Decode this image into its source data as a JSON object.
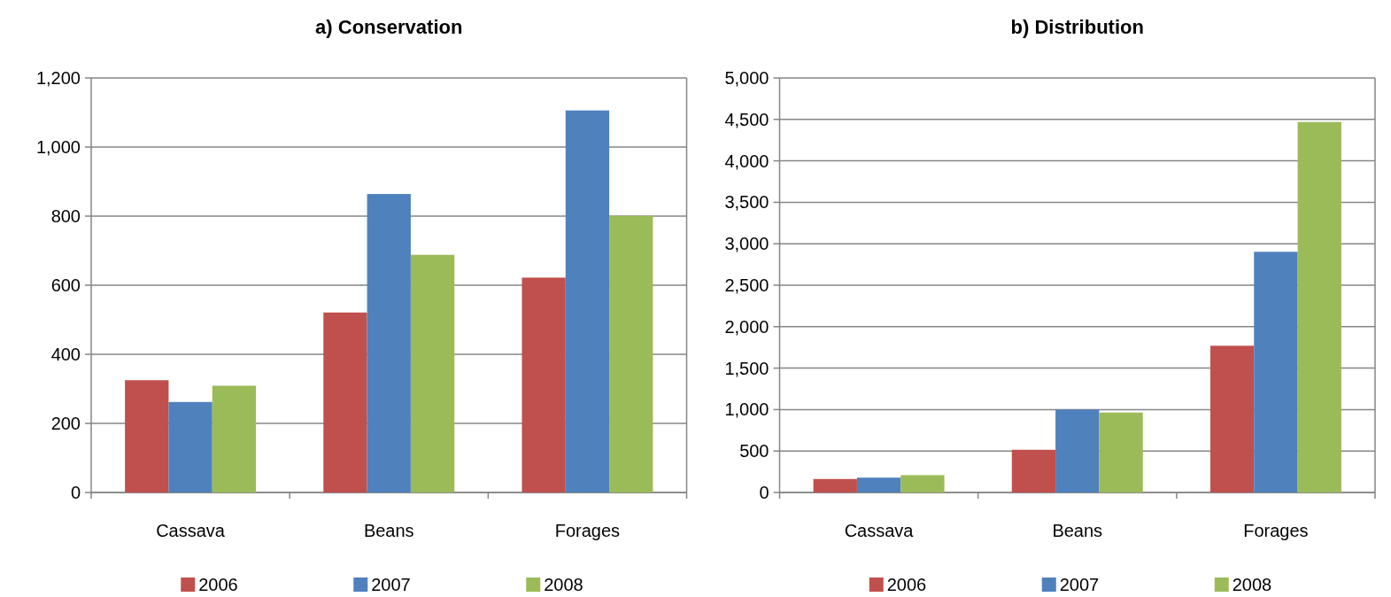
{
  "chart_data": [
    {
      "type": "bar",
      "title": "a) Conservation",
      "categories": [
        "Cassava",
        "Beans",
        "Forages"
      ],
      "series": [
        {
          "name": "2006",
          "color": "#c0504d",
          "values": [
            325,
            521,
            622
          ]
        },
        {
          "name": "2007",
          "color": "#4f81bd",
          "values": [
            262,
            864,
            1106
          ]
        },
        {
          "name": "2008",
          "color": "#9bbb59",
          "values": [
            309,
            688,
            801
          ]
        }
      ],
      "ylim": [
        0,
        1200
      ],
      "yticks": [
        {
          "value": 0,
          "label": "0"
        },
        {
          "value": 200,
          "label": "200"
        },
        {
          "value": 400,
          "label": "400"
        },
        {
          "value": 600,
          "label": "600"
        },
        {
          "value": 800,
          "label": "800"
        },
        {
          "value": 1000,
          "label": "1,000"
        },
        {
          "value": 1200,
          "label": "1,200"
        }
      ],
      "grid": "y",
      "legend": "bottom"
    },
    {
      "type": "bar",
      "title": "b) Distribution",
      "categories": [
        "Cassava",
        "Beans",
        "Forages"
      ],
      "series": [
        {
          "name": "2006",
          "color": "#c0504d",
          "values": [
            163,
            515,
            1770
          ]
        },
        {
          "name": "2007",
          "color": "#4f81bd",
          "values": [
            179,
            1000,
            2903
          ]
        },
        {
          "name": "2008",
          "color": "#9bbb59",
          "values": [
            209,
            964,
            4469
          ]
        }
      ],
      "ylim": [
        0,
        5000
      ],
      "yticks": [
        {
          "value": 0,
          "label": "0"
        },
        {
          "value": 500,
          "label": "500"
        },
        {
          "value": 1000,
          "label": "1,000"
        },
        {
          "value": 1500,
          "label": "1,500"
        },
        {
          "value": 2000,
          "label": "2,000"
        },
        {
          "value": 2500,
          "label": "2,500"
        },
        {
          "value": 3000,
          "label": "3,000"
        },
        {
          "value": 3500,
          "label": "3,500"
        },
        {
          "value": 4000,
          "label": "4,000"
        },
        {
          "value": 4500,
          "label": "4,500"
        },
        {
          "value": 5000,
          "label": "5,000"
        }
      ],
      "grid": "y",
      "legend": "bottom"
    }
  ]
}
